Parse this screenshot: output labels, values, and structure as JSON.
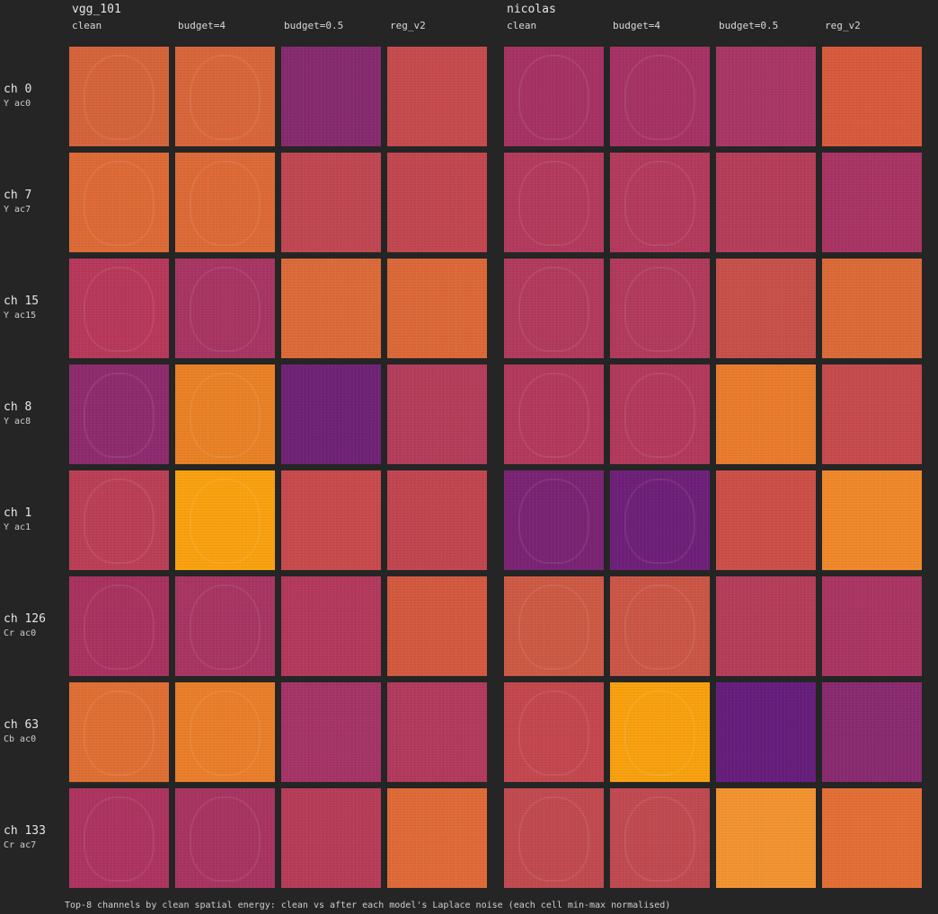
{
  "groups": [
    {
      "title": "vgg_101",
      "columns": [
        "clean",
        "budget=4",
        "budget=0.5",
        "reg_v2"
      ]
    },
    {
      "title": "nicolas",
      "columns": [
        "clean",
        "budget=4",
        "budget=0.5",
        "reg_v2"
      ]
    }
  ],
  "rows": [
    {
      "channel": "ch 0",
      "component": "Y ac0",
      "cells": [
        "#d5643a",
        "#d8663a",
        "#862a6e",
        "#c64a4d",
        "#a63263",
        "#a63264",
        "#a93766",
        "#d85a3c"
      ]
    },
    {
      "channel": "ch 7",
      "component": "Y ac7",
      "cells": [
        "#dd6a36",
        "#dd6a36",
        "#c04752",
        "#c2474f",
        "#b33a5c",
        "#b33a5c",
        "#b53d5a",
        "#a93464"
      ]
    },
    {
      "channel": "ch 15",
      "component": "Y ac15",
      "cells": [
        "#b7385b",
        "#a83562",
        "#dc6a38",
        "#dc6838",
        "#b23a5c",
        "#b23a5c",
        "#c8504a",
        "#dc6a37"
      ]
    },
    {
      "channel": "ch 8",
      "component": "Y ac8",
      "cells": [
        "#8e2b6e",
        "#ea8126",
        "#702276",
        "#b43d5a",
        "#b3395c",
        "#b3395c",
        "#ea7b2c",
        "#c64a4d"
      ]
    },
    {
      "channel": "ch 1",
      "component": "Y ac1",
      "cells": [
        "#bb3f56",
        "#faa10f",
        "#c84a4c",
        "#c1454f",
        "#7a2373",
        "#6e1f78",
        "#cc4f48",
        "#f0882a"
      ]
    },
    {
      "channel": "ch 126",
      "component": "Cr ac0",
      "cells": [
        "#a8325f",
        "#a83563",
        "#b3395c",
        "#d3593f",
        "#cd5a44",
        "#cb5646",
        "#b53d5a",
        "#aa3563"
      ]
    },
    {
      "channel": "ch 63",
      "component": "Cb ac0",
      "cells": [
        "#e06f33",
        "#ea7e2a",
        "#a53466",
        "#b23a5c",
        "#c4474e",
        "#f9a10e",
        "#661d7c",
        "#8a2a6f"
      ]
    },
    {
      "channel": "ch 133",
      "component": "Cr ac7",
      "cells": [
        "#ad3460",
        "#a83461",
        "#b73c58",
        "#e06a37",
        "#c14a4f",
        "#c04a50",
        "#f39330",
        "#e46e35"
      ]
    }
  ],
  "caption": "Top-8 channels by clean spatial energy: clean vs after each model's Laplace noise (each cell min-max normalised)"
}
